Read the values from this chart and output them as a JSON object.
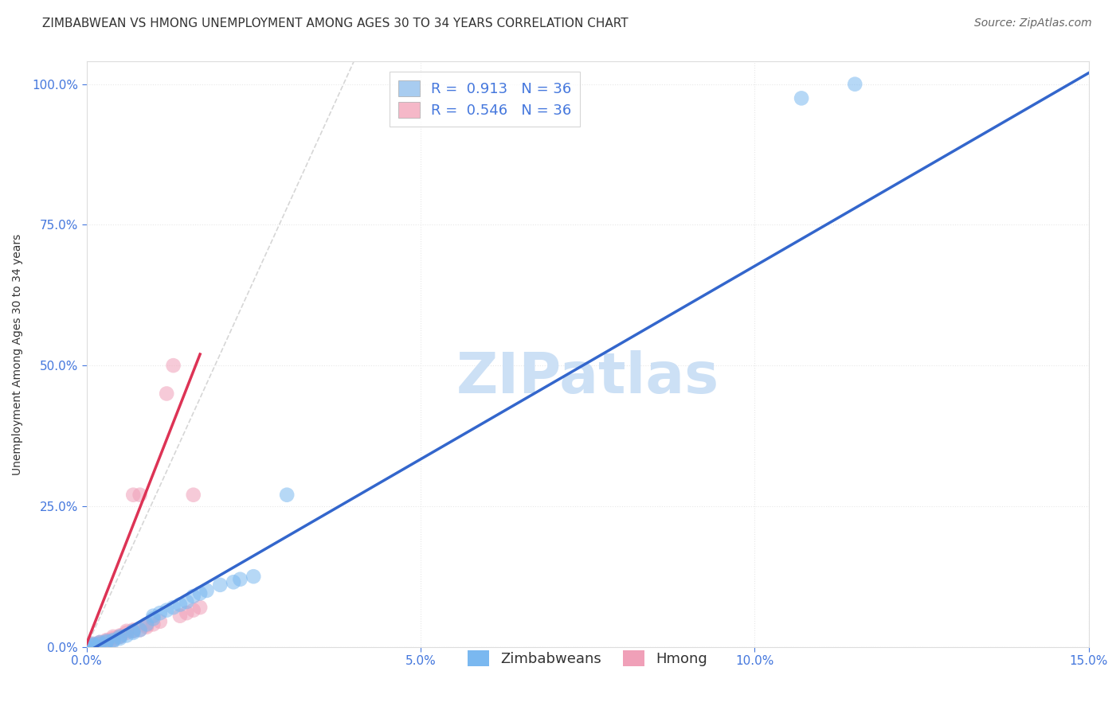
{
  "title": "ZIMBABWEAN VS HMONG UNEMPLOYMENT AMONG AGES 30 TO 34 YEARS CORRELATION CHART",
  "source": "Source: ZipAtlas.com",
  "ylabel": "Unemployment Among Ages 30 to 34 years",
  "xlim": [
    0.0,
    0.15
  ],
  "ylim": [
    0.0,
    1.04
  ],
  "x_ticks": [
    0.0,
    0.05,
    0.1,
    0.15
  ],
  "x_tick_labels": [
    "0.0%",
    "5.0%",
    "10.0%",
    "15.0%"
  ],
  "y_ticks": [
    0.0,
    0.25,
    0.5,
    0.75,
    1.0
  ],
  "y_tick_labels": [
    "0.0%",
    "25.0%",
    "50.0%",
    "75.0%",
    "100.0%"
  ],
  "watermark": "ZIPatlas",
  "blue_color": "#7ab8f0",
  "pink_color": "#f0a0b8",
  "blue_line_color": "#3366cc",
  "pink_line_color": "#dd3355",
  "ref_line_color": "#cccccc",
  "background_color": "#ffffff",
  "grid_color": "#e8e8e8",
  "legend_blue_patch": "#a8ccf0",
  "legend_pink_patch": "#f5b8c8",
  "tick_color": "#4477dd",
  "title_color": "#333333",
  "source_color": "#666666",
  "ylabel_color": "#333333",
  "title_fontsize": 11,
  "source_fontsize": 10,
  "axis_fontsize": 10,
  "tick_fontsize": 11,
  "legend_fontsize": 13,
  "watermark_fontsize": 52,
  "watermark_color": "#cce0f5",
  "scatter_size": 180,
  "scatter_alpha": 0.55,
  "zimbabwean_x": [
    0.0,
    0.0,
    0.0,
    0.001,
    0.001,
    0.001,
    0.002,
    0.002,
    0.003,
    0.003,
    0.004,
    0.004,
    0.005,
    0.005,
    0.006,
    0.007,
    0.007,
    0.008,
    0.009,
    0.01,
    0.01,
    0.011,
    0.012,
    0.013,
    0.014,
    0.015,
    0.016,
    0.017,
    0.018,
    0.02,
    0.022,
    0.023,
    0.025,
    0.03,
    0.107,
    0.115
  ],
  "zimbabwean_y": [
    0.0,
    0.0,
    0.0,
    0.002,
    0.003,
    0.005,
    0.005,
    0.008,
    0.008,
    0.01,
    0.01,
    0.012,
    0.015,
    0.018,
    0.02,
    0.025,
    0.028,
    0.03,
    0.04,
    0.05,
    0.055,
    0.06,
    0.065,
    0.07,
    0.075,
    0.08,
    0.09,
    0.095,
    0.1,
    0.11,
    0.115,
    0.12,
    0.125,
    0.27,
    0.975,
    1.0
  ],
  "hmong_x": [
    0.0,
    0.0,
    0.0,
    0.0,
    0.001,
    0.001,
    0.001,
    0.002,
    0.002,
    0.002,
    0.003,
    0.003,
    0.003,
    0.004,
    0.004,
    0.004,
    0.005,
    0.005,
    0.006,
    0.006,
    0.007,
    0.007,
    0.007,
    0.008,
    0.008,
    0.009,
    0.009,
    0.01,
    0.011,
    0.012,
    0.013,
    0.014,
    0.015,
    0.016,
    0.016,
    0.017
  ],
  "hmong_y": [
    0.0,
    0.0,
    0.0,
    0.0,
    0.002,
    0.003,
    0.005,
    0.005,
    0.007,
    0.008,
    0.008,
    0.01,
    0.012,
    0.012,
    0.015,
    0.018,
    0.018,
    0.02,
    0.025,
    0.028,
    0.028,
    0.03,
    0.27,
    0.03,
    0.27,
    0.035,
    0.038,
    0.04,
    0.045,
    0.45,
    0.5,
    0.055,
    0.06,
    0.065,
    0.27,
    0.07
  ],
  "blue_line_x": [
    0.0,
    0.15
  ],
  "blue_line_y": [
    -0.01,
    1.02
  ],
  "pink_line_x": [
    0.0,
    0.017
  ],
  "pink_line_y": [
    0.005,
    0.52
  ]
}
